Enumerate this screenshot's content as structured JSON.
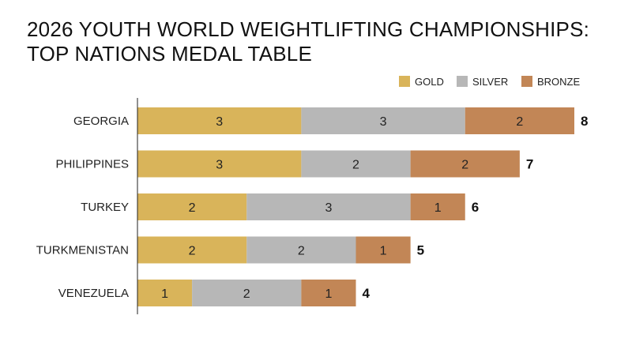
{
  "chart_data": {
    "type": "bar",
    "orientation": "horizontal",
    "stacked": true,
    "title_lines": [
      "2026 YOUTH WORLD WEIGHTLIFTING CHAMPIONSHIPS:",
      "TOP NATIONS MEDAL TABLE"
    ],
    "categories": [
      "GEORGIA",
      "PHILIPPINES",
      "TURKEY",
      "TURKMENISTAN",
      "VENEZUELA"
    ],
    "series": [
      {
        "name": "GOLD",
        "color": "#d9b45a",
        "values": [
          3,
          3,
          2,
          2,
          1
        ]
      },
      {
        "name": "SILVER",
        "color": "#b7b7b7",
        "values": [
          3,
          2,
          3,
          2,
          2
        ]
      },
      {
        "name": "BRONZE",
        "color": "#c28656",
        "values": [
          2,
          2,
          1,
          1,
          1
        ]
      }
    ],
    "totals": [
      "8",
      "7",
      "6",
      "5",
      "4"
    ],
    "xlim": [
      0,
      8
    ],
    "legend_position": "top-right",
    "grid": false
  }
}
